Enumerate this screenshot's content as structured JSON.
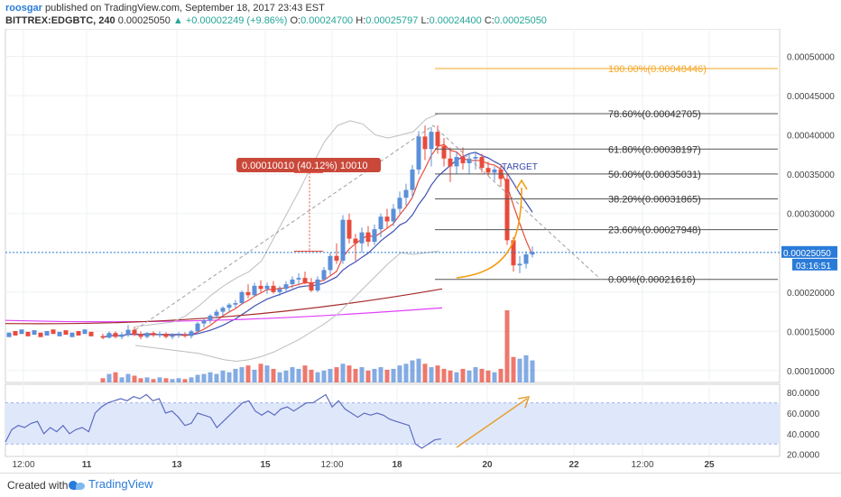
{
  "header": {
    "author": "roosgar",
    "published": " published on TradingView.com, September 18, 2017 23:43 EST",
    "symbol": "BITTREX:EDGBTC, 240",
    "last": "0.00025050",
    "change": "▲ +0.00002249 (+9.86%)",
    "o_label": "O:",
    "o": "0.00024700",
    "h_label": "H:",
    "h": "0.00025797",
    "l_label": "L:",
    "l": "0.00024400",
    "c_label": "C:",
    "c": "0.00025050"
  },
  "footer": {
    "created": "Created with",
    "brand": "TradingView"
  },
  "price_label": {
    "value": "0.00025050",
    "countdown": "03:16:51"
  },
  "measure_label": "0.00010010 (40.12%) 10010",
  "target_label": "TARGET",
  "colors": {
    "up": "#5b8fd9",
    "down": "#e84b3c",
    "accent": "#2a7bd8",
    "fib": "#555555",
    "fib_top": "#f5a623",
    "ma_red": "#e84b3c",
    "ma_blue": "#3f51b5",
    "ma_magenta": "#e040fb",
    "ma_darkred": "#a52a2a",
    "rsi_band": "#dfe8fb"
  },
  "chart_data": {
    "type": "candlestick",
    "price_axis": {
      "ticks": [
        "0.00050000",
        "0.00045000",
        "0.00040000",
        "0.00035000",
        "0.00030000",
        "0.00020000",
        "0.00015000",
        "0.00010000"
      ],
      "ylim": [
        8.5e-05,
        0.000535
      ]
    },
    "x_ticks": [
      "12:00",
      "11",
      "13",
      "15",
      "12:00",
      "18",
      "20",
      "22",
      "12:00",
      "25"
    ],
    "rsi_axis": {
      "ticks": [
        "80.0000",
        "60.0000",
        "40.0000",
        "20.0000"
      ],
      "ylim": [
        18,
        88
      ]
    },
    "fib_levels": [
      {
        "label": "100.00%(0.00048446)",
        "price": 0.00048446
      },
      {
        "label": "78.60%(0.00042705)",
        "price": 0.00042705
      },
      {
        "label": "61.80%(0.00038197)",
        "price": 0.00038197
      },
      {
        "label": "50.00%(0.00035031)",
        "price": 0.00035031
      },
      {
        "label": "38.20%(0.00031865)",
        "price": 0.00031865
      },
      {
        "label": "23.60%(0.00027948)",
        "price": 0.00027948
      },
      {
        "label": "0.00%(0.00021616)",
        "price": 0.00021616
      }
    ],
    "candles": [
      [
        0.000144,
        0.000147,
        0.00014,
        0.000142
      ],
      [
        0.000142,
        0.00015,
        0.000141,
        0.000148
      ],
      [
        0.000148,
        0.00015,
        0.000141,
        0.000143
      ],
      [
        0.000143,
        0.000149,
        0.00014,
        0.000146
      ],
      [
        0.000146,
        0.000158,
        0.000143,
        0.000152
      ],
      [
        0.000152,
        0.000156,
        0.000144,
        0.000146
      ],
      [
        0.000146,
        0.00015,
        0.00014,
        0.000143
      ],
      [
        0.000143,
        0.000149,
        0.000141,
        0.000148
      ],
      [
        0.000148,
        0.00015,
        0.000143,
        0.000145
      ],
      [
        0.000145,
        0.00015,
        0.000142,
        0.000147
      ],
      [
        0.000147,
        0.000149,
        0.000141,
        0.000143
      ],
      [
        0.000143,
        0.000148,
        0.00014,
        0.000145
      ],
      [
        0.000145,
        0.000149,
        0.000142,
        0.000146
      ],
      [
        0.000146,
        0.000149,
        0.000142,
        0.000144
      ],
      [
        0.000144,
        0.000152,
        0.000141,
        0.00015
      ],
      [
        0.00015,
        0.000162,
        0.000148,
        0.00016
      ],
      [
        0.00016,
        0.000167,
        0.000155,
        0.000164
      ],
      [
        0.000164,
        0.000172,
        0.00016,
        0.00017
      ],
      [
        0.00017,
        0.000178,
        0.000166,
        0.000175
      ],
      [
        0.000175,
        0.000182,
        0.00017,
        0.00018
      ],
      [
        0.00018,
        0.000186,
        0.000175,
        0.000184
      ],
      [
        0.000184,
        0.00019,
        0.00018,
        0.000186
      ],
      [
        0.000186,
        0.000202,
        0.000184,
        0.0002
      ],
      [
        0.0002,
        0.00021,
        0.000192,
        0.000196
      ],
      [
        0.000196,
        0.000212,
        0.000194,
        0.000208
      ],
      [
        0.000208,
        0.000215,
        0.0002,
        0.000204
      ],
      [
        0.000204,
        0.000212,
        0.000198,
        0.000208
      ],
      [
        0.000208,
        0.000214,
        0.000198,
        0.0002
      ],
      [
        0.0002,
        0.000208,
        0.000195,
        0.000204
      ],
      [
        0.000204,
        0.000214,
        0.0002,
        0.00021
      ],
      [
        0.00021,
        0.00022,
        0.000205,
        0.000216
      ],
      [
        0.000216,
        0.000224,
        0.00021,
        0.000218
      ],
      [
        0.000218,
        0.000226,
        0.00021,
        0.000212
      ],
      [
        0.000212,
        0.000218,
        0.0002,
        0.000202
      ],
      [
        0.000202,
        0.00022,
        0.0002,
        0.000216
      ],
      [
        0.000216,
        0.000232,
        0.000214,
        0.000228
      ],
      [
        0.000228,
        0.00025,
        0.000222,
        0.000246
      ],
      [
        0.000246,
        0.000262,
        0.000236,
        0.00024
      ],
      [
        0.00024,
        0.000298,
        0.000236,
        0.000292
      ],
      [
        0.000292,
        0.0003,
        0.000262,
        0.000268
      ],
      [
        0.000268,
        0.000274,
        0.00024,
        0.000262
      ],
      [
        0.000262,
        0.000282,
        0.00025,
        0.000276
      ],
      [
        0.000276,
        0.000284,
        0.000258,
        0.000264
      ],
      [
        0.000264,
        0.000286,
        0.00026,
        0.00028
      ],
      [
        0.00028,
        0.0003,
        0.00027,
        0.000296
      ],
      [
        0.000296,
        0.000306,
        0.000282,
        0.00029
      ],
      [
        0.00029,
        0.000312,
        0.000284,
        0.000306
      ],
      [
        0.000306,
        0.000328,
        0.0003,
        0.00032
      ],
      [
        0.00032,
        0.000338,
        0.00031,
        0.00033
      ],
      [
        0.00033,
        0.000362,
        0.00032,
        0.000356
      ],
      [
        0.000356,
        0.000405,
        0.00035,
        0.000398
      ],
      [
        0.000398,
        0.000412,
        0.000368,
        0.000382
      ],
      [
        0.000382,
        0.00041,
        0.00036,
        0.000404
      ],
      [
        0.000404,
        0.000412,
        0.000376,
        0.000386
      ],
      [
        0.000386,
        0.000396,
        0.00036,
        0.00037
      ],
      [
        0.00037,
        0.000384,
        0.00034,
        0.00036
      ],
      [
        0.00036,
        0.000378,
        0.00035,
        0.000372
      ],
      [
        0.000372,
        0.000384,
        0.000356,
        0.000364
      ],
      [
        0.000364,
        0.000376,
        0.00035,
        0.00037
      ],
      [
        0.00037,
        0.000378,
        0.000356,
        0.000372
      ],
      [
        0.000372,
        0.000376,
        0.000352,
        0.000358
      ],
      [
        0.000358,
        0.000366,
        0.000348,
        0.000352
      ],
      [
        0.000352,
        0.00036,
        0.000342,
        0.000356
      ],
      [
        0.000356,
        0.000362,
        0.000334,
        0.000344
      ],
      [
        0.000344,
        0.000352,
        0.00026,
        0.000266
      ],
      [
        0.000266,
        0.00027,
        0.000226,
        0.000234
      ],
      [
        0.000234,
        0.000246,
        0.000224,
        0.000236
      ],
      [
        0.000236,
        0.000252,
        0.00023,
        0.000248
      ],
      [
        0.000248,
        0.000258,
        0.000244,
        0.000251
      ]
    ],
    "volume": [
      5,
      10,
      12,
      6,
      10,
      8,
      5,
      6,
      4,
      6,
      5,
      4,
      5,
      4,
      6,
      9,
      10,
      12,
      10,
      14,
      12,
      16,
      18,
      20,
      15,
      22,
      20,
      16,
      12,
      14,
      18,
      16,
      20,
      15,
      12,
      14,
      16,
      18,
      22,
      20,
      16,
      18,
      14,
      16,
      18,
      15,
      16,
      20,
      22,
      26,
      28,
      22,
      18,
      20,
      16,
      14,
      12,
      16,
      14,
      18,
      16,
      14,
      12,
      16,
      85,
      30,
      28,
      32,
      26
    ],
    "rsi": [
      32,
      44,
      48,
      46,
      50,
      52,
      40,
      46,
      42,
      48,
      40,
      44,
      46,
      42,
      60,
      66,
      70,
      72,
      74,
      72,
      76,
      74,
      78,
      72,
      74,
      60,
      62,
      56,
      48,
      50,
      60,
      58,
      56,
      46,
      52,
      58,
      64,
      70,
      72,
      62,
      58,
      62,
      58,
      64,
      66,
      62,
      66,
      70,
      70,
      74,
      78,
      66,
      72,
      64,
      60,
      56,
      60,
      58,
      60,
      58,
      54,
      52,
      50,
      48,
      30,
      26,
      30,
      34,
      35
    ],
    "bb_upper": [
      0.000156,
      0.000158,
      0.00016,
      0.000162,
      0.00017,
      0.000182,
      0.000196,
      0.000208,
      0.000218,
      0.000226,
      0.00024,
      0.00027,
      0.0003,
      0.00033,
      0.000362,
      0.000392,
      0.000412,
      0.000418,
      0.000414,
      0.0004,
      0.000396,
      0.0004,
      0.000404,
      0.00042,
      0.000427
    ],
    "bb_lower": [
      0.000132,
      0.00013,
      0.000128,
      0.000126,
      0.000124,
      0.000122,
      0.000118,
      0.000114,
      0.000112,
      0.000114,
      0.000118,
      0.000124,
      0.000132,
      0.00014,
      0.00015,
      0.00016,
      0.000172,
      0.000188,
      0.000204,
      0.00022,
      0.000236,
      0.00025,
      0.000248,
      0.00025,
      0.000252
    ]
  }
}
